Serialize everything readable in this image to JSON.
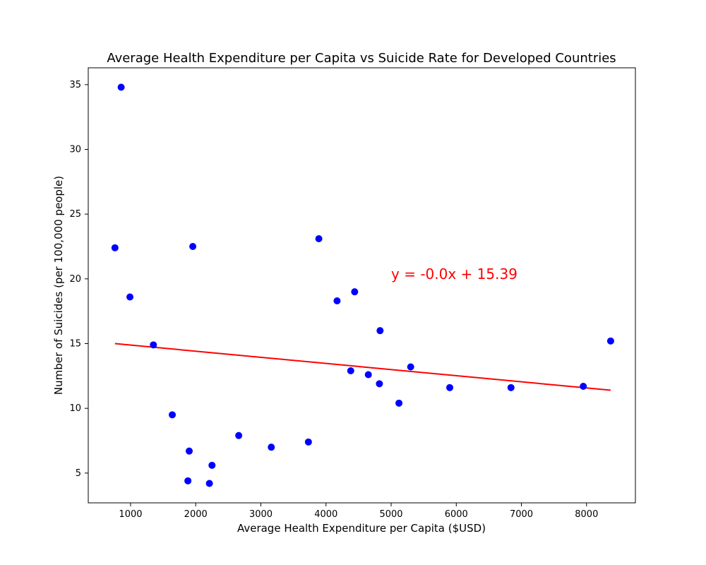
{
  "chart_data": {
    "type": "scatter",
    "title": "Average Health Expenditure per Capita vs Suicide Rate for Developed Countries",
    "xlabel": "Average Health Expenditure per Capita ($USD)",
    "ylabel": "Number of Suicides (per 100,000 people)",
    "xlim": [
      350,
      8750
    ],
    "ylim": [
      2.7,
      36.3
    ],
    "xticks": [
      1000,
      2000,
      3000,
      4000,
      5000,
      6000,
      7000,
      8000
    ],
    "yticks": [
      5,
      10,
      15,
      20,
      25,
      30,
      35
    ],
    "grid": false,
    "colors": {
      "points": "#0000ff",
      "trend": "#ff0000"
    },
    "points": [
      {
        "x": 855,
        "y": 34.8
      },
      {
        "x": 760,
        "y": 22.4
      },
      {
        "x": 1955,
        "y": 22.5
      },
      {
        "x": 990,
        "y": 18.6
      },
      {
        "x": 1350,
        "y": 14.9
      },
      {
        "x": 1640,
        "y": 9.5
      },
      {
        "x": 1900,
        "y": 6.7
      },
      {
        "x": 1880,
        "y": 4.4
      },
      {
        "x": 2250,
        "y": 5.6
      },
      {
        "x": 2210,
        "y": 4.2
      },
      {
        "x": 2660,
        "y": 7.9
      },
      {
        "x": 3160,
        "y": 7.0
      },
      {
        "x": 3730,
        "y": 7.4
      },
      {
        "x": 3890,
        "y": 23.1
      },
      {
        "x": 4170,
        "y": 18.3
      },
      {
        "x": 4440,
        "y": 19.0
      },
      {
        "x": 4380,
        "y": 12.9
      },
      {
        "x": 4650,
        "y": 12.6
      },
      {
        "x": 4830,
        "y": 16.0
      },
      {
        "x": 4820,
        "y": 11.9
      },
      {
        "x": 5120,
        "y": 10.4
      },
      {
        "x": 5300,
        "y": 13.2
      },
      {
        "x": 5900,
        "y": 11.6
      },
      {
        "x": 6840,
        "y": 11.6
      },
      {
        "x": 7950,
        "y": 11.7
      },
      {
        "x": 8370,
        "y": 15.2
      }
    ],
    "trend_line": {
      "x": [
        760,
        8370
      ],
      "y": [
        15.0,
        11.4
      ]
    },
    "annotation": {
      "text": "y = -0.0x + 15.39",
      "x": 5000,
      "y": 20.0
    }
  }
}
